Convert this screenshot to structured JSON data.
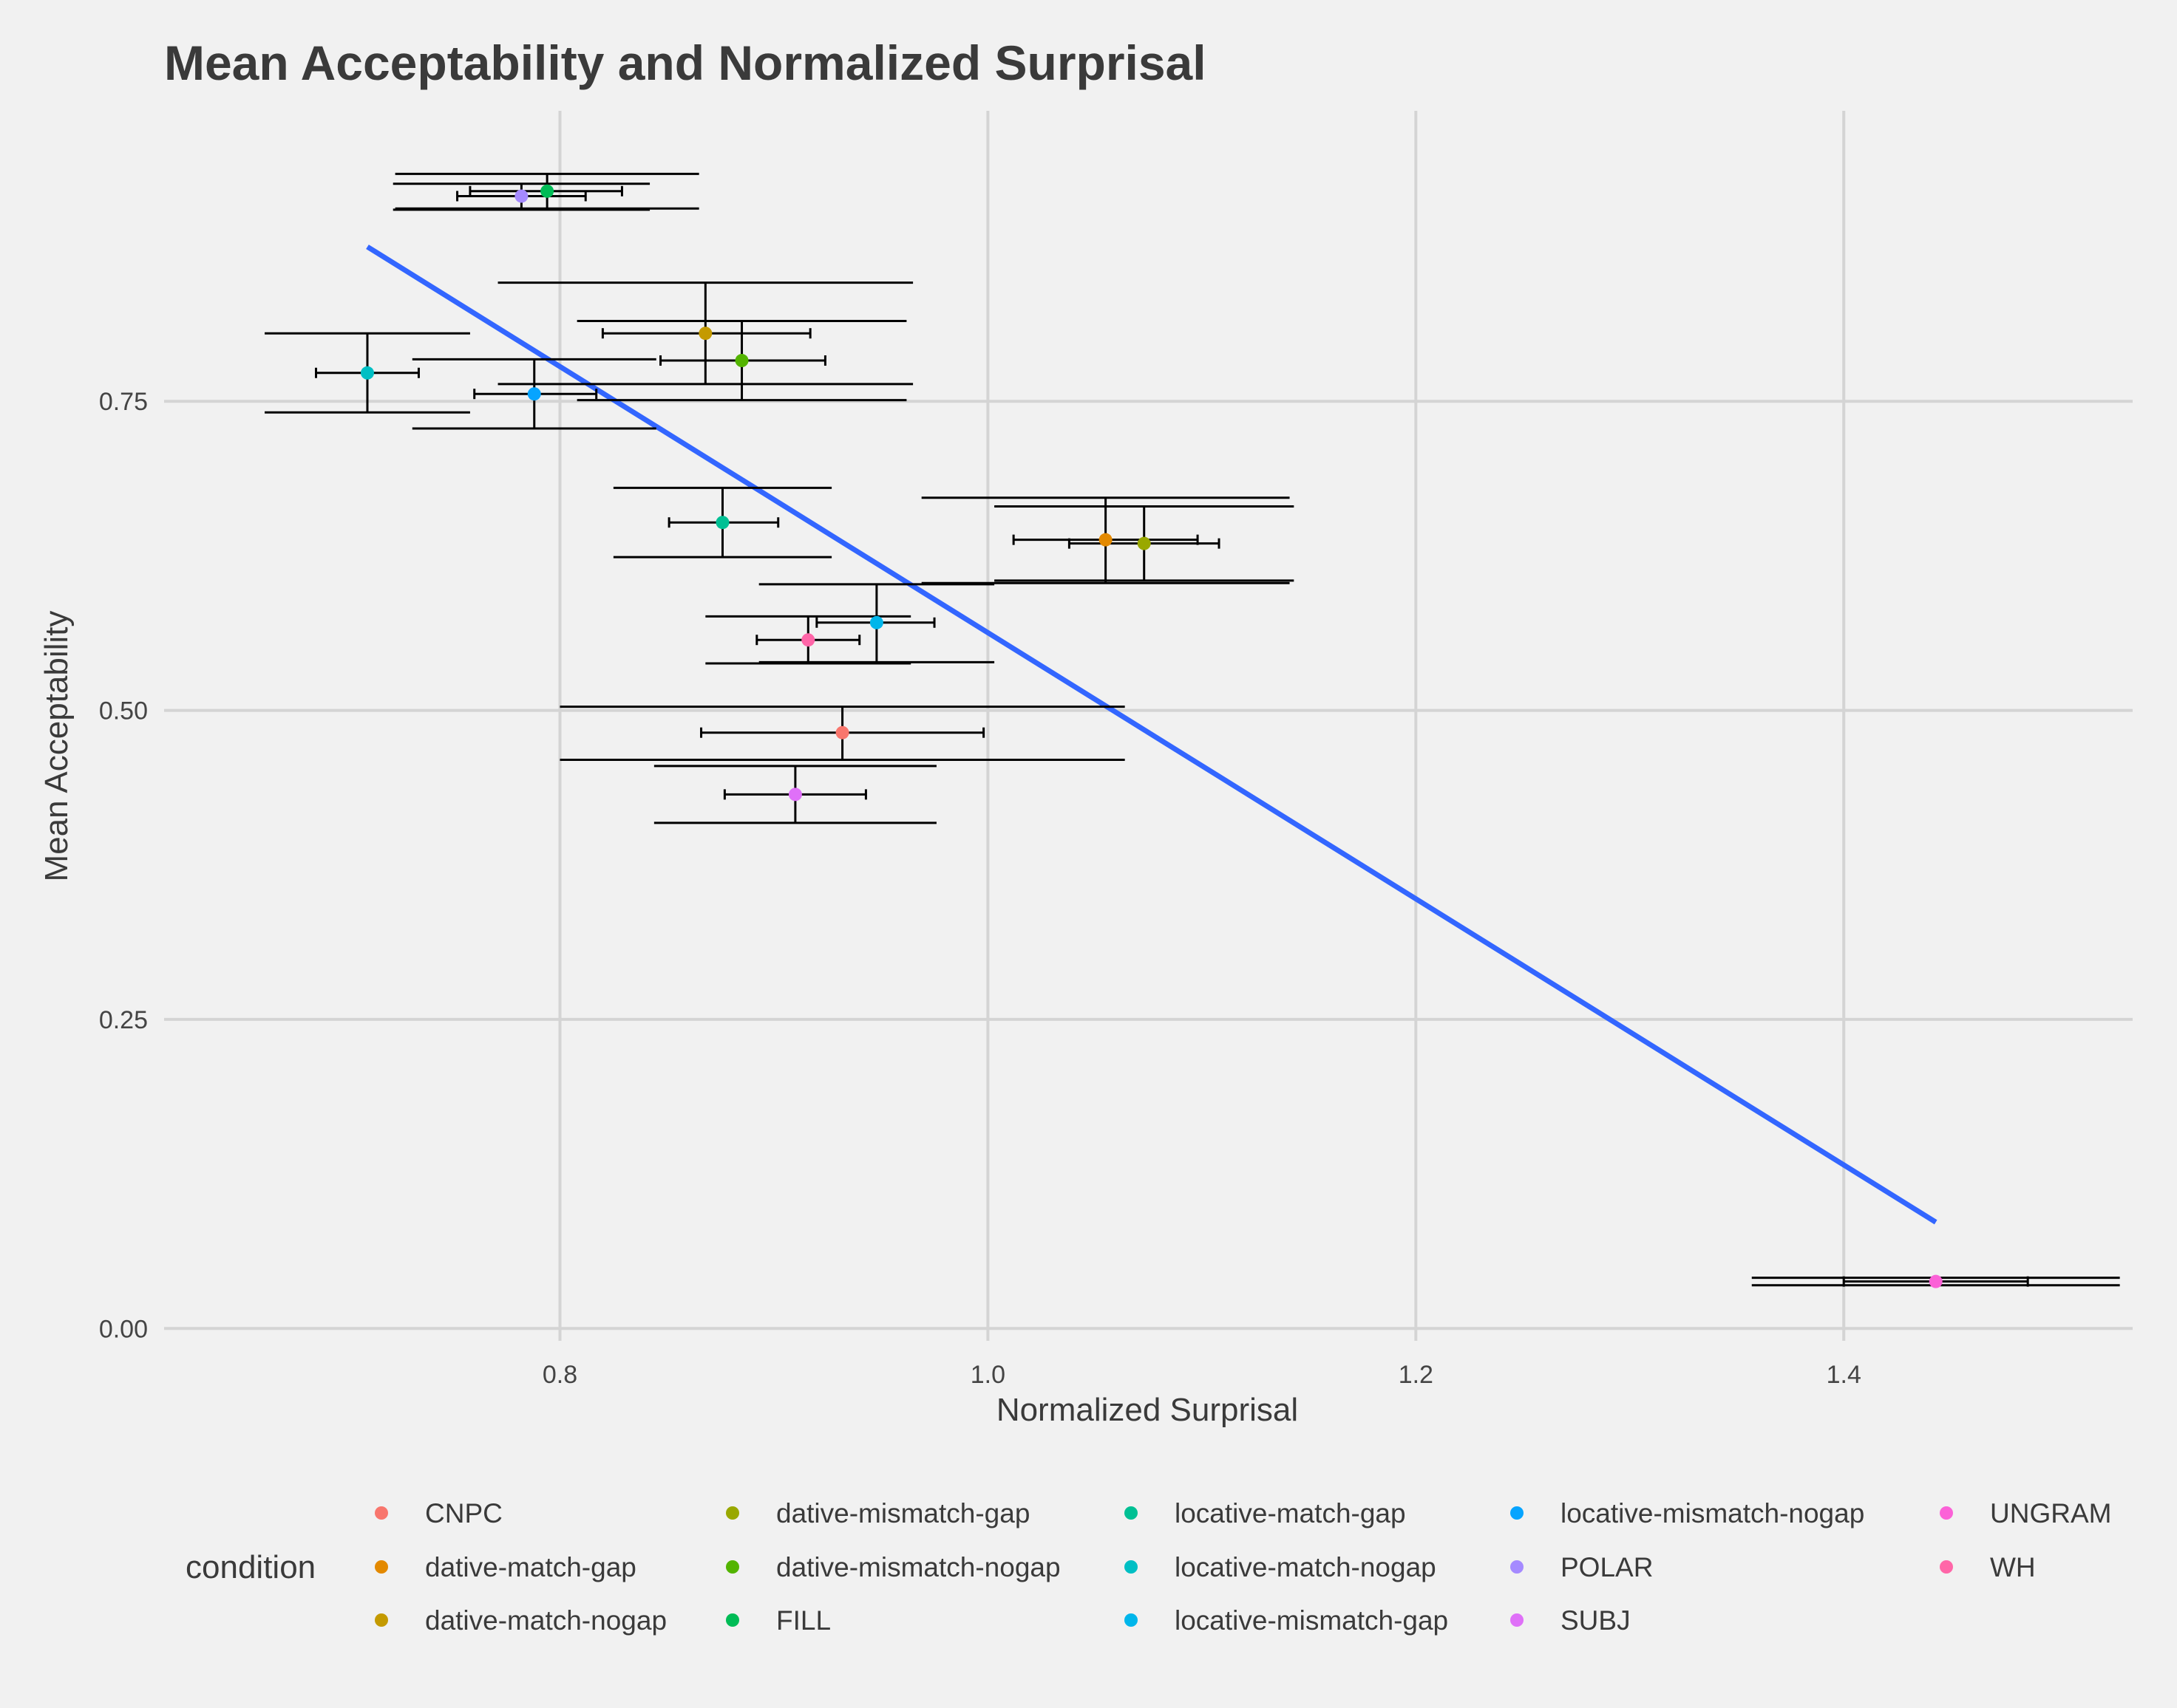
{
  "chart_data": {
    "type": "scatter",
    "title": "Mean Acceptability and Normalized Surprisal",
    "xlabel": "Normalized Surprisal",
    "ylabel": "Mean Acceptability",
    "xlim": [
      0.615,
      1.535
    ],
    "ylim": [
      -0.01,
      0.985
    ],
    "x_ticks": [
      0.8,
      1.0,
      1.2,
      1.4
    ],
    "x_tick_labels": [
      "0.8",
      "1.0",
      "1.2",
      "1.4"
    ],
    "y_ticks": [
      0.0,
      0.25,
      0.5,
      0.75
    ],
    "y_tick_labels": [
      "0.00",
      "0.25",
      "0.50",
      "0.75"
    ],
    "grid": true,
    "legend": {
      "title": "condition",
      "placement": "bottom",
      "columns": 5
    },
    "series": [
      {
        "name": "CNPC",
        "color": "#F8766D",
        "x": 0.932,
        "y": 0.482,
        "xerr": [
          0.866,
          0.998
        ],
        "yerr": [
          0.46,
          0.503
        ]
      },
      {
        "name": "dative-match-gap",
        "color": "#E38900",
        "x": 1.055,
        "y": 0.638,
        "xerr": [
          1.012,
          1.098
        ],
        "yerr": [
          0.603,
          0.672
        ]
      },
      {
        "name": "dative-match-nogap",
        "color": "#C49A00",
        "x": 0.868,
        "y": 0.805,
        "xerr": [
          0.82,
          0.917
        ],
        "yerr": [
          0.764,
          0.846
        ]
      },
      {
        "name": "dative-mismatch-gap",
        "color": "#99A800",
        "x": 1.073,
        "y": 0.635,
        "xerr": [
          1.038,
          1.108
        ],
        "yerr": [
          0.605,
          0.665
        ]
      },
      {
        "name": "dative-mismatch-nogap",
        "color": "#53B400",
        "x": 0.885,
        "y": 0.783,
        "xerr": [
          0.847,
          0.924
        ],
        "yerr": [
          0.751,
          0.815
        ]
      },
      {
        "name": "FILL",
        "color": "#00BC56",
        "x": 0.794,
        "y": 0.92,
        "xerr": [
          0.758,
          0.829
        ],
        "yerr": [
          0.906,
          0.934
        ]
      },
      {
        "name": "locative-match-gap",
        "color": "#00C094",
        "x": 0.876,
        "y": 0.652,
        "xerr": [
          0.851,
          0.902
        ],
        "yerr": [
          0.624,
          0.68
        ]
      },
      {
        "name": "locative-match-nogap",
        "color": "#00BFC4",
        "x": 0.71,
        "y": 0.773,
        "xerr": [
          0.686,
          0.734
        ],
        "yerr": [
          0.741,
          0.805
        ]
      },
      {
        "name": "locative-mismatch-gap",
        "color": "#00B6EB",
        "x": 0.948,
        "y": 0.571,
        "xerr": [
          0.92,
          0.975
        ],
        "yerr": [
          0.539,
          0.602
        ]
      },
      {
        "name": "locative-mismatch-nogap",
        "color": "#06A4FF",
        "x": 0.788,
        "y": 0.756,
        "xerr": [
          0.76,
          0.817
        ],
        "yerr": [
          0.728,
          0.784
        ]
      },
      {
        "name": "POLAR",
        "color": "#A58AFF",
        "x": 0.782,
        "y": 0.916,
        "xerr": [
          0.752,
          0.812
        ],
        "yerr": [
          0.905,
          0.926
        ]
      },
      {
        "name": "SUBJ",
        "color": "#DF70F8",
        "x": 0.91,
        "y": 0.432,
        "xerr": [
          0.877,
          0.943
        ],
        "yerr": [
          0.409,
          0.455
        ]
      },
      {
        "name": "UNGRAM",
        "color": "#FB61D7",
        "x": 1.443,
        "y": 0.038,
        "xerr": [
          1.4,
          1.486
        ],
        "yerr": [
          0.035,
          0.041
        ]
      },
      {
        "name": "WH",
        "color": "#FF66A8",
        "x": 0.916,
        "y": 0.557,
        "xerr": [
          0.892,
          0.94
        ],
        "yerr": [
          0.538,
          0.576
        ]
      }
    ],
    "fit_line": {
      "color": "#3366FF",
      "x": [
        0.71,
        1.443
      ],
      "y": [
        0.875,
        0.086
      ]
    },
    "errorbar_color": "#000000",
    "background_color": "#F1F1F1",
    "grid_color": "#D4D4D4"
  }
}
